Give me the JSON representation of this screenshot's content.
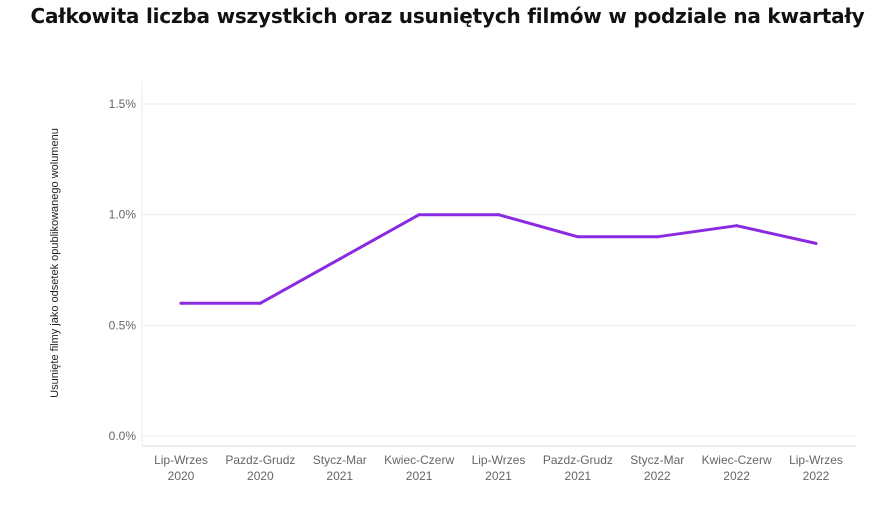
{
  "chart_data": {
    "type": "line",
    "title": "Całkowita liczba wszystkich oraz usuniętych filmów w podziale na kwartały",
    "xlabel": "",
    "ylabel": "Usunięte filmy jako odsetek opublikowanego wolumenu",
    "categories": [
      [
        "Lip-Wrzes",
        "2020"
      ],
      [
        "Pazdz-Grudz",
        "2020"
      ],
      [
        "Stycz-Mar",
        "2021"
      ],
      [
        "Kwiec-Czerw",
        "2021"
      ],
      [
        "Lip-Wrzes",
        "2021"
      ],
      [
        "Pazdz-Grudz",
        "2021"
      ],
      [
        "Stycz-Mar",
        "2022"
      ],
      [
        "Kwiec-Czerw",
        "2022"
      ],
      [
        "Lip-Wrzes",
        "2022"
      ]
    ],
    "series": [
      {
        "values": [
          0.6,
          0.6,
          0.8,
          1.0,
          1.0,
          0.9,
          0.9,
          0.95,
          0.87
        ]
      }
    ],
    "ylim": [
      0,
      1.5
    ],
    "yticks": [
      0,
      0.5,
      1.0,
      1.5
    ],
    "ytick_labels": [
      "0.0%",
      "0.5%",
      "1.0%",
      "1.5%"
    ],
    "grid": true,
    "colors": {
      "line": "#8a2be2",
      "grid": "#ececec",
      "axis": "#dddddd"
    }
  }
}
